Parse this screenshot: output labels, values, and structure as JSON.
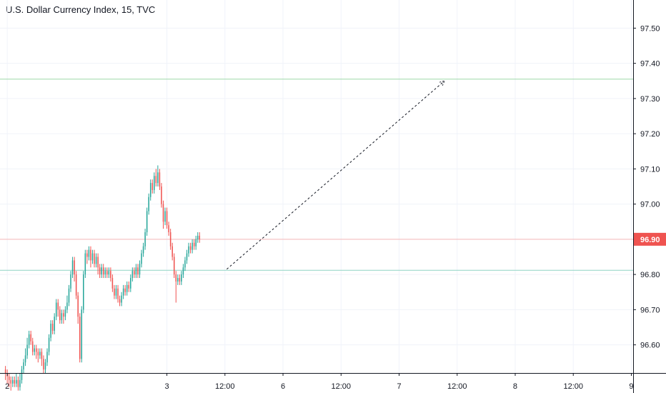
{
  "chart_data": {
    "type": "candlestick",
    "title": "U.S. Dollar Currency Index, 15, TVC",
    "y_ticks": [
      96.6,
      96.7,
      96.8,
      96.9,
      97.0,
      97.1,
      97.2,
      97.3,
      97.4,
      97.5
    ],
    "y_tick_labels": [
      "96.60",
      "96.70",
      "96.80",
      "96.90",
      "97.00",
      "97.10",
      "97.20",
      "97.30",
      "97.40",
      "97.50"
    ],
    "ylim": [
      96.52,
      97.58
    ],
    "x_tick_labels": [
      "2",
      "3",
      "12:00",
      "6",
      "12:00",
      "7",
      "12:00",
      "8",
      "12:00",
      "9"
    ],
    "x_tick_positions": [
      1,
      89,
      121,
      153,
      185,
      217,
      249,
      281,
      313,
      345
    ],
    "xlim": [
      -3,
      346
    ],
    "current_price": 96.9,
    "current_price_label": "96.90",
    "horizontal_lines": [
      {
        "value": 97.355,
        "color": "#9ed8a8"
      },
      {
        "value": 96.9,
        "color": "#f7b7b7"
      },
      {
        "value": 96.812,
        "color": "#8fd4c4"
      }
    ],
    "trend_line": {
      "from": [
        122,
        96.815
      ],
      "to": [
        242,
        97.35
      ]
    },
    "colors": {
      "up": "#26a69a",
      "down": "#ef5350",
      "axis": "#131722",
      "grid": "#f0f3fa",
      "price_tag": "#ef5350"
    },
    "candles": [
      [
        96.53,
        96.52,
        96.54,
        96.5
      ],
      [
        96.52,
        96.51,
        96.53,
        96.49
      ],
      [
        96.51,
        96.5,
        96.52,
        96.48
      ],
      [
        96.5,
        96.49,
        96.51,
        96.47
      ],
      [
        96.49,
        96.5,
        96.51,
        96.48
      ],
      [
        96.5,
        96.49,
        96.51,
        96.48
      ],
      [
        96.49,
        96.5,
        96.52,
        96.48
      ],
      [
        96.5,
        96.48,
        96.51,
        96.47
      ],
      [
        96.48,
        96.5,
        96.52,
        96.47
      ],
      [
        96.5,
        96.53,
        96.54,
        96.49
      ],
      [
        96.53,
        96.55,
        96.56,
        96.52
      ],
      [
        96.55,
        96.57,
        96.59,
        96.54
      ],
      [
        96.57,
        96.6,
        96.62,
        96.56
      ],
      [
        96.6,
        96.63,
        96.64,
        96.59
      ],
      [
        96.63,
        96.61,
        96.64,
        96.6
      ],
      [
        96.61,
        96.58,
        96.62,
        96.57
      ],
      [
        96.58,
        96.59,
        96.6,
        96.57
      ],
      [
        96.59,
        96.58,
        96.6,
        96.56
      ],
      [
        96.58,
        96.57,
        96.59,
        96.55
      ],
      [
        96.57,
        96.58,
        96.59,
        96.56
      ],
      [
        96.58,
        96.56,
        96.59,
        96.54
      ],
      [
        96.56,
        96.53,
        96.57,
        96.52
      ],
      [
        96.53,
        96.55,
        96.56,
        96.52
      ],
      [
        96.55,
        96.58,
        96.59,
        96.54
      ],
      [
        96.58,
        96.62,
        96.63,
        96.57
      ],
      [
        96.62,
        96.66,
        96.67,
        96.61
      ],
      [
        96.66,
        96.64,
        96.67,
        96.63
      ],
      [
        96.64,
        96.68,
        96.69,
        96.63
      ],
      [
        96.68,
        96.72,
        96.73,
        96.67
      ],
      [
        96.72,
        96.7,
        96.73,
        96.68
      ],
      [
        96.7,
        96.67,
        96.71,
        96.66
      ],
      [
        96.67,
        96.69,
        96.7,
        96.66
      ],
      [
        96.69,
        96.68,
        96.7,
        96.66
      ],
      [
        96.68,
        96.7,
        96.71,
        96.67
      ],
      [
        96.7,
        96.72,
        96.74,
        96.69
      ],
      [
        96.72,
        96.76,
        96.77,
        96.71
      ],
      [
        96.76,
        96.8,
        96.81,
        96.75
      ],
      [
        96.8,
        96.84,
        96.85,
        96.79
      ],
      [
        96.84,
        96.8,
        96.85,
        96.78
      ],
      [
        96.8,
        96.74,
        96.81,
        96.73
      ],
      [
        96.74,
        96.68,
        96.75,
        96.66
      ],
      [
        96.68,
        96.56,
        96.69,
        96.55
      ],
      [
        96.56,
        96.7,
        96.71,
        96.55
      ],
      [
        96.7,
        96.8,
        96.81,
        96.69
      ],
      [
        96.8,
        96.86,
        96.87,
        96.79
      ],
      [
        96.86,
        96.85,
        96.87,
        96.83
      ],
      [
        96.85,
        96.87,
        96.88,
        96.84
      ],
      [
        96.87,
        96.84,
        96.88,
        96.82
      ],
      [
        96.84,
        96.86,
        96.87,
        96.83
      ],
      [
        96.86,
        96.83,
        96.87,
        96.82
      ],
      [
        96.83,
        96.85,
        96.86,
        96.82
      ],
      [
        96.85,
        96.82,
        96.86,
        96.8
      ],
      [
        96.82,
        96.8,
        96.83,
        96.79
      ],
      [
        96.8,
        96.82,
        96.83,
        96.79
      ],
      [
        96.82,
        96.8,
        96.83,
        96.79
      ],
      [
        96.8,
        96.81,
        96.82,
        96.79
      ],
      [
        96.81,
        96.8,
        96.82,
        96.79
      ],
      [
        96.8,
        96.81,
        96.82,
        96.79
      ],
      [
        96.81,
        96.79,
        96.82,
        96.78
      ],
      [
        96.79,
        96.76,
        96.8,
        96.75
      ],
      [
        96.76,
        96.74,
        96.77,
        96.73
      ],
      [
        96.74,
        96.76,
        96.77,
        96.73
      ],
      [
        96.76,
        96.73,
        96.77,
        96.72
      ],
      [
        96.73,
        96.72,
        96.74,
        96.71
      ],
      [
        96.72,
        96.74,
        96.75,
        96.71
      ],
      [
        96.74,
        96.76,
        96.77,
        96.73
      ],
      [
        96.76,
        96.75,
        96.77,
        96.74
      ],
      [
        96.75,
        96.77,
        96.78,
        96.74
      ],
      [
        96.77,
        96.76,
        96.78,
        96.75
      ],
      [
        96.76,
        96.79,
        96.8,
        96.75
      ],
      [
        96.79,
        96.81,
        96.82,
        96.78
      ],
      [
        96.81,
        96.8,
        96.82,
        96.79
      ],
      [
        96.8,
        96.82,
        96.83,
        96.79
      ],
      [
        96.82,
        96.8,
        96.83,
        96.79
      ],
      [
        96.8,
        96.83,
        96.84,
        96.79
      ],
      [
        96.83,
        96.86,
        96.87,
        96.82
      ],
      [
        96.86,
        96.88,
        96.89,
        96.85
      ],
      [
        96.88,
        96.92,
        96.93,
        96.87
      ],
      [
        96.92,
        96.98,
        96.99,
        96.91
      ],
      [
        96.98,
        97.02,
        97.03,
        96.97
      ],
      [
        97.02,
        97.06,
        97.07,
        97.01
      ],
      [
        97.06,
        97.04,
        97.07,
        97.03
      ],
      [
        97.04,
        97.08,
        97.09,
        97.03
      ],
      [
        97.08,
        97.06,
        97.1,
        97.05
      ],
      [
        97.06,
        97.09,
        97.11,
        97.05
      ],
      [
        97.09,
        97.05,
        97.1,
        97.04
      ],
      [
        97.05,
        97.0,
        97.06,
        96.99
      ],
      [
        97.0,
        96.95,
        97.01,
        96.93
      ],
      [
        96.95,
        96.98,
        96.99,
        96.94
      ],
      [
        96.98,
        96.94,
        96.99,
        96.93
      ],
      [
        96.94,
        96.92,
        96.95,
        96.91
      ],
      [
        96.92,
        96.88,
        96.93,
        96.87
      ],
      [
        96.88,
        96.85,
        96.89,
        96.84
      ],
      [
        96.85,
        96.8,
        96.86,
        96.79
      ],
      [
        96.8,
        96.78,
        96.81,
        96.72
      ],
      [
        96.78,
        96.79,
        96.8,
        96.77
      ],
      [
        96.79,
        96.78,
        96.8,
        96.77
      ],
      [
        96.78,
        96.8,
        96.81,
        96.77
      ],
      [
        96.8,
        96.82,
        96.83,
        96.79
      ],
      [
        96.82,
        96.84,
        96.85,
        96.81
      ],
      [
        96.84,
        96.86,
        96.87,
        96.83
      ],
      [
        96.86,
        96.88,
        96.89,
        96.85
      ],
      [
        96.88,
        96.87,
        96.89,
        96.86
      ],
      [
        96.87,
        96.89,
        96.9,
        96.86
      ],
      [
        96.89,
        96.88,
        96.9,
        96.87
      ],
      [
        96.88,
        96.9,
        96.91,
        96.87
      ],
      [
        96.9,
        96.91,
        96.92,
        96.89
      ],
      [
        96.91,
        96.9,
        96.92,
        96.89
      ]
    ]
  }
}
